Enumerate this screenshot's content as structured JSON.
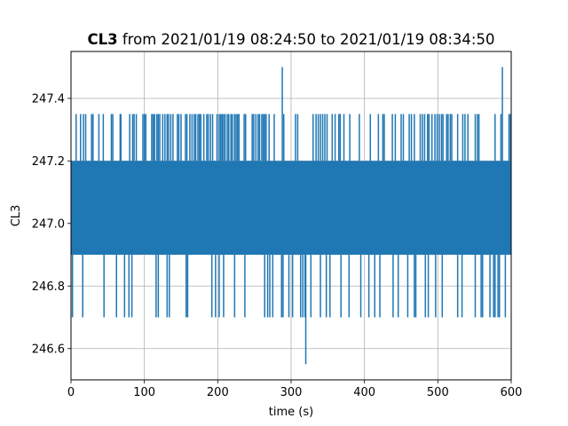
{
  "chart_data": {
    "type": "line",
    "title": {
      "bold": "CL3",
      "rest": " from 2021/01/19 08:24:50 to 2021/01/19 08:34:50"
    },
    "xlabel": "time (s)",
    "ylabel": "CL3",
    "xlim": [
      0,
      600
    ],
    "ylim": [
      246.5,
      247.55
    ],
    "xticks": [
      0,
      100,
      200,
      300,
      400,
      500,
      600
    ],
    "xtick_labels": [
      "0",
      "100",
      "200",
      "300",
      "400",
      "500",
      "600"
    ],
    "yticks": [
      246.6,
      246.8,
      247.0,
      247.2,
      247.4
    ],
    "ytick_labels": [
      "246.6",
      "246.8",
      "247.0",
      "247.2",
      "247.4"
    ],
    "grid": true,
    "series": [
      {
        "color": "#1f77b4",
        "band": {
          "low": 246.9,
          "high": 247.2,
          "from": 0,
          "to": 600
        },
        "up_spikes_247_35": [
          7,
          13,
          17,
          20,
          28,
          30,
          38,
          44,
          55,
          57,
          67,
          68,
          80,
          84,
          86,
          89,
          98,
          100,
          102,
          110,
          112,
          114,
          117,
          119,
          121,
          125,
          128,
          131,
          133,
          136,
          139,
          145,
          147,
          150,
          156,
          158,
          162,
          165,
          168,
          170,
          173,
          175,
          177,
          181,
          185,
          187,
          190,
          193,
          199,
          202,
          204,
          206,
          208,
          210,
          213,
          215,
          218,
          220,
          223,
          225,
          227,
          229,
          236,
          238,
          247,
          249,
          252,
          255,
          257,
          260,
          262,
          264,
          266,
          270,
          277,
          290,
          306,
          309,
          330,
          334,
          337,
          340,
          343,
          346,
          349,
          356,
          360,
          365,
          367,
          372,
          380,
          393,
          408,
          419,
          425,
          427,
          438,
          442,
          450,
          453,
          461,
          464,
          468,
          476,
          479,
          482,
          486,
          488,
          492,
          496,
          499,
          502,
          505,
          507,
          512,
          514,
          517,
          519,
          527,
          534,
          537,
          541,
          551,
          554,
          556,
          578,
          586,
          597,
          599
        ],
        "down_spikes_246_7": [
          2,
          16,
          45,
          62,
          73,
          79,
          83,
          116,
          119,
          131,
          134,
          157,
          159,
          192,
          197,
          202,
          208,
          223,
          237,
          264,
          268,
          271,
          275,
          287,
          289,
          297,
          302,
          313,
          316,
          319,
          327,
          340,
          348,
          353,
          368,
          379,
          395,
          406,
          414,
          421,
          439,
          446,
          459,
          468,
          470,
          483,
          487,
          497,
          506,
          527,
          533,
          551,
          559,
          561,
          571,
          576,
          578,
          582,
          584,
          592
        ],
        "peaks": [
          {
            "x": 288,
            "y": 247.5
          },
          {
            "x": 588,
            "y": 247.5
          },
          {
            "x": 320,
            "y": 246.55
          }
        ]
      }
    ]
  }
}
